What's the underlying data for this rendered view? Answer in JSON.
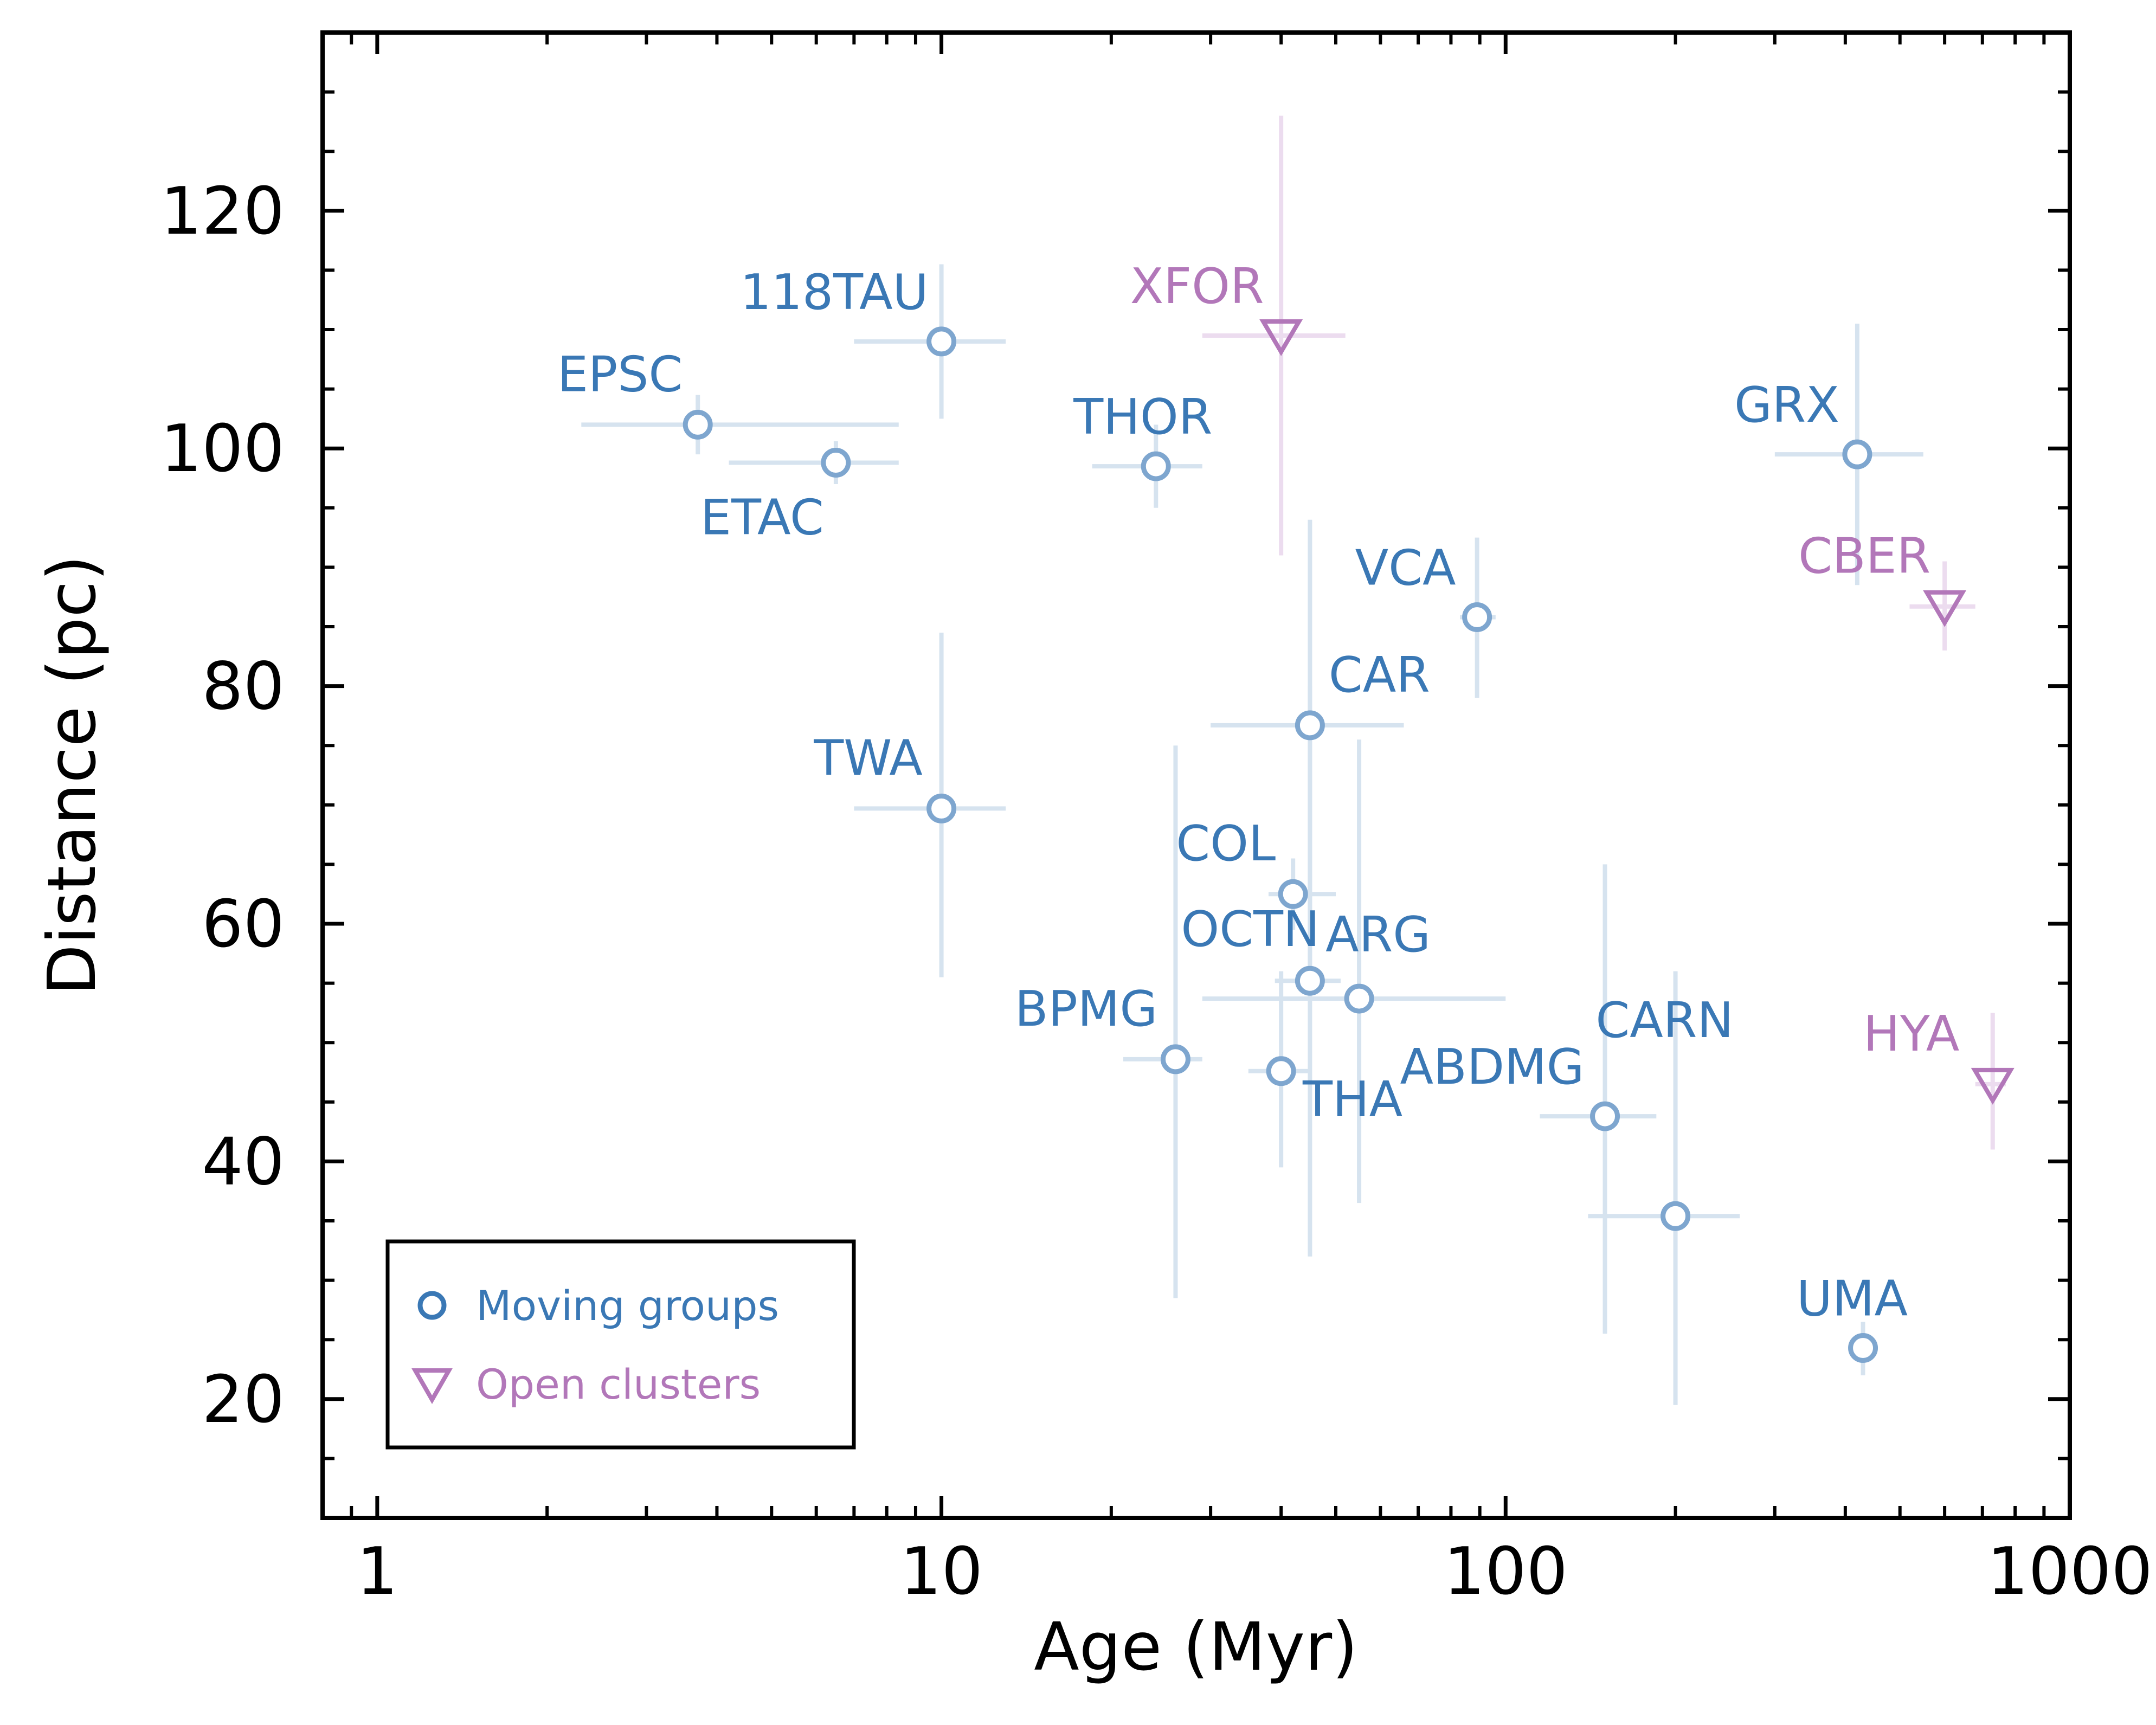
{
  "chart_data": {
    "type": "scatter",
    "title": "",
    "xlabel": "Age (Myr)",
    "ylabel": "Distance (pc)",
    "xscale": "log",
    "xlim": [
      0.8,
      1000
    ],
    "ylim": [
      10,
      135
    ],
    "xticks": [
      1,
      10,
      100,
      1000
    ],
    "xtick_labels": [
      "1",
      "10",
      "100",
      "1000"
    ],
    "yticks": [
      20,
      40,
      60,
      80,
      100,
      120
    ],
    "ytick_labels": [
      "20",
      "40",
      "60",
      "80",
      "100",
      "120"
    ],
    "grid": false,
    "legend_position": "bottom-left",
    "colors": {
      "moving": "#3a78b5",
      "open": "#b277b9",
      "moving_err": "#d6e3ef",
      "open_err": "#ecdcef",
      "axis": "#000000"
    },
    "series": [
      {
        "name": "Moving groups",
        "marker": "circle",
        "points": [
          {
            "label": "EPSC",
            "x": 3.7,
            "y": 102.0,
            "xerr": [
              2.3,
              8.4
            ],
            "yerr": [
              99.5,
              104.5
            ]
          },
          {
            "label": "118TAU",
            "x": 10.0,
            "y": 109.0,
            "xerr": [
              7.0,
              13.0
            ],
            "yerr": [
              102.5,
              115.5
            ]
          },
          {
            "label": "ETAC",
            "x": 6.5,
            "y": 98.8,
            "xerr": [
              4.2,
              8.4
            ],
            "yerr": [
              97.0,
              100.6
            ]
          },
          {
            "label": "THOR",
            "x": 24.0,
            "y": 98.5,
            "xerr": [
              18.5,
              29.0
            ],
            "yerr": [
              95.0,
              102.0
            ]
          },
          {
            "label": "GRX",
            "x": 420,
            "y": 99.5,
            "xerr": [
              300,
              550
            ],
            "yerr": [
              88.5,
              110.5
            ]
          },
          {
            "label": "VCA",
            "x": 89,
            "y": 85.8,
            "xerr": [
              83,
              96
            ],
            "yerr": [
              79.0,
              92.5
            ]
          },
          {
            "label": "CAR",
            "x": 45,
            "y": 76.7,
            "xerr": [
              30,
              66
            ],
            "yerr": [
              56.0,
              94.0
            ]
          },
          {
            "label": "TWA",
            "x": 10.0,
            "y": 69.7,
            "xerr": [
              7.0,
              13.0
            ],
            "yerr": [
              55.5,
              84.5
            ]
          },
          {
            "label": "COL",
            "x": 42,
            "y": 62.5,
            "xerr": [
              38,
              50
            ],
            "yerr": [
              59.5,
              65.5
            ]
          },
          {
            "label": "ARG",
            "x": 55,
            "y": 53.7,
            "xerr": [
              29,
              100
            ],
            "yerr": [
              36.5,
              75.5
            ]
          },
          {
            "label": "OCTN",
            "x": 45,
            "y": 55.2,
            "xerr": [
              39,
              51
            ],
            "yerr": [
              32.0,
              80.0
            ]
          },
          {
            "label": "BPMG",
            "x": 26,
            "y": 48.6,
            "xerr": [
              21,
              29
            ],
            "yerr": [
              28.5,
              75.0
            ]
          },
          {
            "label": "THA",
            "x": 40,
            "y": 47.6,
            "xerr": [
              35,
              45
            ],
            "yerr": [
              39.5,
              56.0
            ]
          },
          {
            "label": "ABDMG",
            "x": 150,
            "y": 43.8,
            "xerr": [
              115,
              185
            ],
            "yerr": [
              25.5,
              65.0
            ]
          },
          {
            "label": "CARN",
            "x": 200,
            "y": 35.4,
            "xerr": [
              140,
              260
            ],
            "yerr": [
              19.5,
              56.0
            ]
          },
          {
            "label": "UMA",
            "x": 430,
            "y": 24.3,
            "xerr": [
              410,
              455
            ],
            "yerr": [
              22.0,
              26.5
            ]
          }
        ]
      },
      {
        "name": "Open clusters",
        "marker": "triangle-down",
        "points": [
          {
            "label": "XFOR",
            "x": 40,
            "y": 109.5,
            "xerr": [
              29,
              52
            ],
            "yerr": [
              91.0,
              128.0
            ]
          },
          {
            "label": "CBER",
            "x": 600,
            "y": 86.7,
            "xerr": [
              520,
              680
            ],
            "yerr": [
              83.0,
              90.5
            ]
          },
          {
            "label": "HYA",
            "x": 730,
            "y": 46.5,
            "xerr": [
              680,
              770
            ],
            "yerr": [
              41.0,
              52.5
            ]
          }
        ]
      }
    ]
  },
  "legend": {
    "moving_label": "Moving groups",
    "open_label": "Open clusters"
  }
}
